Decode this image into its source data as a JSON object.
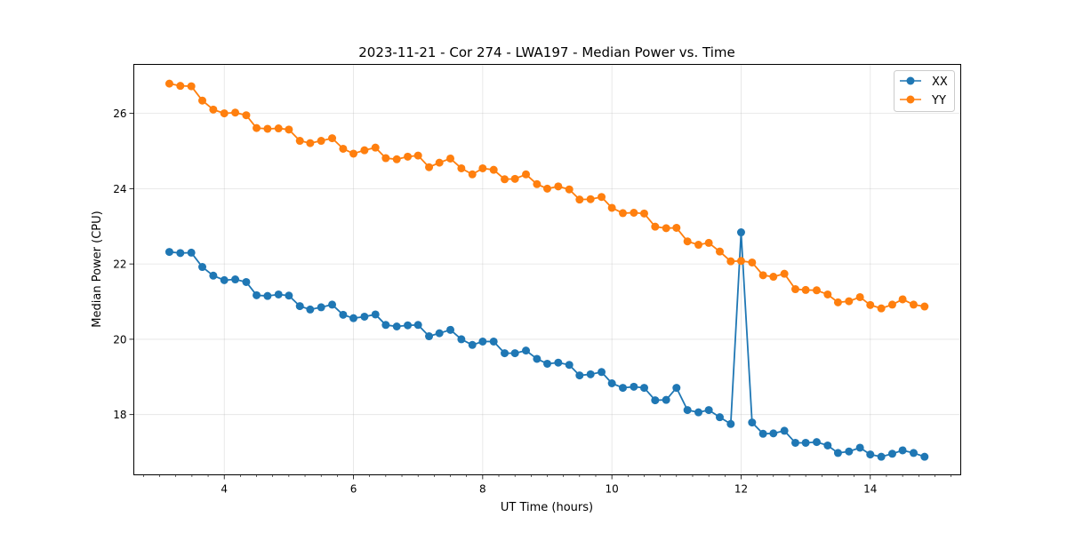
{
  "chart_data": {
    "type": "line",
    "title": "2023-11-21 - Cor 274 - LWA197 - Median Power vs. Time",
    "xlabel": "UT Time (hours)",
    "ylabel": "Median Power (CPU)",
    "xlim": [
      2.6,
      15.4
    ],
    "ylim": [
      16.4,
      27.3
    ],
    "xticks": [
      4,
      6,
      8,
      10,
      12,
      14
    ],
    "yticks": [
      18,
      20,
      22,
      24,
      26
    ],
    "grid": true,
    "legend_position": "top-right",
    "x": [
      3.15,
      3.32,
      3.49,
      3.66,
      3.83,
      4.0,
      4.17,
      4.34,
      4.5,
      4.67,
      4.84,
      5.0,
      5.17,
      5.33,
      5.5,
      5.67,
      5.84,
      6.0,
      6.17,
      6.34,
      6.5,
      6.67,
      6.84,
      7.0,
      7.17,
      7.33,
      7.5,
      7.67,
      7.84,
      8.0,
      8.17,
      8.34,
      8.5,
      8.67,
      8.84,
      9.0,
      9.17,
      9.34,
      9.5,
      9.67,
      9.84,
      10.0,
      10.17,
      10.34,
      10.5,
      10.67,
      10.84,
      11.0,
      11.17,
      11.34,
      11.5,
      11.67,
      11.84,
      12.0,
      12.17,
      12.34,
      12.5,
      12.67,
      12.84,
      13.0,
      13.17,
      13.34,
      13.5,
      13.67,
      13.84,
      14.0,
      14.17,
      14.34,
      14.5,
      14.67,
      14.84
    ],
    "series": [
      {
        "name": "XX",
        "color": "#1f77b4",
        "values": [
          22.32,
          22.29,
          22.3,
          21.92,
          21.69,
          21.57,
          21.59,
          21.52,
          21.17,
          21.15,
          21.19,
          21.16,
          20.88,
          20.79,
          20.85,
          20.92,
          20.65,
          20.56,
          20.6,
          20.66,
          20.38,
          20.34,
          20.37,
          20.38,
          20.08,
          20.16,
          20.25,
          20.0,
          19.85,
          19.94,
          19.94,
          19.63,
          19.63,
          19.7,
          19.48,
          19.35,
          19.38,
          19.32,
          19.04,
          19.07,
          19.13,
          18.83,
          18.71,
          18.74,
          18.71,
          18.38,
          18.39,
          18.71,
          18.12,
          18.06,
          18.12,
          17.93,
          17.75,
          22.84,
          17.79,
          17.49,
          17.5,
          17.57,
          17.25,
          17.25,
          17.27,
          17.18,
          16.98,
          17.02,
          17.12,
          16.94,
          16.88,
          16.96,
          17.05,
          16.98,
          16.88
        ]
      },
      {
        "name": "YY",
        "color": "#ff7f0e",
        "values": [
          26.79,
          26.73,
          26.72,
          26.34,
          26.1,
          26.0,
          26.02,
          25.95,
          25.61,
          25.59,
          25.6,
          25.57,
          25.27,
          25.21,
          25.27,
          25.34,
          25.06,
          24.93,
          25.02,
          25.09,
          24.81,
          24.78,
          24.85,
          24.88,
          24.57,
          24.69,
          24.8,
          24.54,
          24.38,
          24.54,
          24.5,
          24.25,
          24.26,
          24.38,
          24.12,
          24.0,
          24.06,
          23.98,
          23.71,
          23.72,
          23.78,
          23.49,
          23.35,
          23.36,
          23.34,
          22.99,
          22.95,
          22.96,
          22.6,
          22.51,
          22.56,
          22.33,
          22.07,
          22.08,
          22.04,
          21.7,
          21.66,
          21.74,
          21.33,
          21.31,
          21.3,
          21.19,
          20.98,
          21.01,
          21.12,
          20.91,
          20.82,
          20.92,
          21.06,
          20.92,
          20.87
        ]
      }
    ]
  }
}
